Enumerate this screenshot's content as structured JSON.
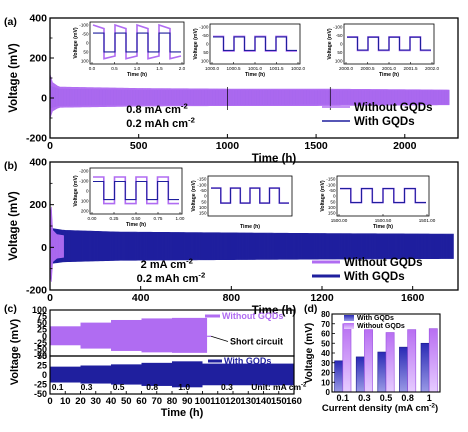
{
  "colors": {
    "without": "#b06cf2",
    "with": "#1f1f9e",
    "axis": "#000000",
    "bar_with_top": "#2a2ab5",
    "bar_with_bottom": "#9a9ae6",
    "bar_without_top": "#b86ef2",
    "bar_without_bottom": "#e6ccff"
  },
  "chart_data": [
    {
      "id": "a",
      "type": "line",
      "panel_label": "(a)",
      "xlabel": "Time (h)",
      "ylabel": "Voltage (mV)",
      "xlim": [
        0,
        2300
      ],
      "ylim": [
        -200,
        400
      ],
      "xticks": [
        0,
        500,
        1000,
        1500,
        2000
      ],
      "xtick_labels": [
        "0",
        "500",
        "1000",
        "1500",
        "2000"
      ],
      "yticks": [
        -200,
        0,
        200,
        400
      ],
      "ytick_labels": [
        "-200",
        "0",
        "200",
        "400"
      ],
      "annotation": [
        "0.8 mA cm",
        "-2",
        "0.2 mAh cm",
        "-2"
      ],
      "series": [
        {
          "name": "Without GQDs",
          "amplitude": [
            [
              0,
              120
            ],
            [
              10,
              80
            ],
            [
              50,
              55
            ],
            [
              500,
              48
            ],
            [
              1000,
              45
            ],
            [
              1500,
              45
            ],
            [
              2000,
              42
            ],
            [
              2250,
              40
            ]
          ],
          "end": 2250
        },
        {
          "name": "With GQDs",
          "amplitude": [
            [
              0,
              60
            ],
            [
              50,
              45
            ],
            [
              500,
              40
            ],
            [
              1000,
              40
            ],
            [
              1500,
              38
            ],
            [
              2000,
              38
            ],
            [
              2250,
              38
            ]
          ],
          "end": 2250
        }
      ],
      "legend": [
        "Without GQDs",
        "With GQDs"
      ],
      "insets": [
        {
          "xlim": [
            0.0,
            2.0
          ],
          "xticks": [
            "0.0",
            "0.5",
            "1.0",
            "1.5",
            "2.0"
          ],
          "ylim": [
            -100,
            100
          ],
          "yticks": [
            "-100",
            "-50",
            "0",
            "50",
            "100"
          ],
          "xlabel": "Time (h)",
          "ylabel": "Voltage (mV)",
          "without_amp": 80,
          "with_amp": 55
        },
        {
          "xlim": [
            1000.0,
            1002.0
          ],
          "xticks": [
            "1000.0",
            "1000.5",
            "1001.0",
            "1001.5",
            "1002.0"
          ],
          "ylim": [
            -100,
            100
          ],
          "yticks": [
            "-100",
            "-50",
            "0",
            "50",
            "100"
          ],
          "xlabel": "Time (h)",
          "ylabel": "Voltage (mV)",
          "without_amp": 45,
          "with_amp": 42
        },
        {
          "xlim": [
            2000.0,
            2002.0
          ],
          "xticks": [
            "2000.0",
            "2000.5",
            "2001.0",
            "2001.5",
            "2002.0"
          ],
          "ylim": [
            -100,
            100
          ],
          "yticks": [
            "-100",
            "-50",
            "0",
            "50",
            "100"
          ],
          "xlabel": "Time (h)",
          "ylabel": "Voltage (mV)",
          "without_amp": 42,
          "with_amp": 40
        }
      ]
    },
    {
      "id": "b",
      "type": "line",
      "panel_label": "(b)",
      "xlabel": "Time (h)",
      "ylabel": "Voltage (mV)",
      "xlim": [
        0,
        1800
      ],
      "ylim": [
        -200,
        400
      ],
      "xticks": [
        0,
        400,
        800,
        1200,
        1600
      ],
      "xtick_labels": [
        "0",
        "400",
        "800",
        "1200",
        "1600"
      ],
      "yticks": [
        -200,
        0,
        200,
        400
      ],
      "ytick_labels": [
        "-200",
        "0",
        "200",
        "400"
      ],
      "annotation": [
        "2 mA cm",
        "-2",
        "0.2 mAh cm",
        "-2"
      ],
      "series": [
        {
          "name": "Without GQDs",
          "amplitude": [
            [
              0,
              150
            ],
            [
              6,
              190
            ],
            [
              12,
              80
            ],
            [
              30,
              60
            ],
            [
              60,
              55
            ]
          ],
          "end": 60
        },
        {
          "name": "With GQDs",
          "amplitude": [
            [
              0,
              90
            ],
            [
              60,
              80
            ],
            [
              300,
              72
            ],
            [
              800,
              68
            ],
            [
              1200,
              65
            ],
            [
              1780,
              62
            ]
          ],
          "end": 1780
        }
      ],
      "legend": [
        "Without GQDs",
        "With GQDs"
      ],
      "insets": [
        {
          "xlim": [
            0.0,
            1.0
          ],
          "xticks": [
            "0.00",
            "0.25",
            "0.50",
            "0.75",
            "1.00"
          ],
          "ylim": [
            -200,
            200
          ],
          "yticks": [
            "-200",
            "-100",
            "0",
            "100",
            "200"
          ],
          "xlabel": "Time (h)",
          "ylabel": "Voltage (mV)",
          "without_amp": 140,
          "with_amp": 95
        },
        {
          "xlim": [
            0,
            1
          ],
          "xticks": [],
          "ylim": [
            -150,
            150
          ],
          "yticks": [
            "-150",
            "-100",
            "-50",
            "0",
            "50",
            "100",
            "150"
          ],
          "xlabel": "Time (h)",
          "ylabel": "Voltage (mV)",
          "without_amp": 70,
          "with_amp": 70
        },
        {
          "xlim": [
            1500.0,
            1501.0
          ],
          "xticks": [
            "1500.00",
            "1500.50",
            "1501.00"
          ],
          "ylim": [
            -150,
            150
          ],
          "yticks": [
            "-150",
            "-100",
            "-50",
            "0",
            "50",
            "100",
            "150"
          ],
          "xlabel": "Time (h)",
          "ylabel": "Voltage (mV)",
          "without_amp": 65,
          "with_amp": 65
        }
      ]
    },
    {
      "id": "c",
      "type": "line",
      "panel_label": "(c)",
      "xlabel": "Time (h)",
      "ylabel": "Voltage (mV)",
      "xlim": [
        0,
        160
      ],
      "xticks": [
        0,
        10,
        20,
        30,
        40,
        50,
        60,
        70,
        80,
        90,
        100,
        110,
        120,
        130,
        140,
        150,
        160
      ],
      "xtick_labels": [
        "0",
        "10",
        "20",
        "30",
        "40",
        "50",
        "60",
        "70",
        "80",
        "90",
        "100",
        "110",
        "120",
        "130",
        "140",
        "150",
        "160"
      ],
      "top": {
        "ylim": [
          -75,
          100
        ],
        "yticks": [
          100,
          75,
          50,
          25,
          0,
          -25,
          -50,
          -75
        ],
        "ytick_labels": [
          "100",
          "75",
          "50",
          "25",
          "0",
          "-25",
          "-50",
          "-75"
        ],
        "legend": "Without GQDs",
        "short_label": "Short circuit",
        "short_at": 103
      },
      "bottom": {
        "ylim": [
          -50,
          50
        ],
        "yticks": [
          50,
          25,
          0,
          -25,
          -50
        ],
        "ytick_labels": [
          "50",
          "25",
          "0",
          "-25",
          "-50"
        ],
        "legend": "With GQDs"
      },
      "rate_labels": [
        "0.1",
        "0.3",
        "0.5",
        "0.8",
        "1.0",
        "0.3"
      ],
      "rate_positions": [
        5,
        24,
        45,
        67,
        88,
        116
      ],
      "unit_label": "Unit: mA cm",
      "unit_sup": "-2",
      "series": [
        {
          "name": "Without GQDs",
          "segments": [
            [
              0,
              20,
              38
            ],
            [
              20,
              40,
              52
            ],
            [
              40,
              60,
              62
            ],
            [
              60,
              80,
              68
            ],
            [
              80,
              103,
              70
            ]
          ]
        },
        {
          "name": "With GQDs",
          "segments": [
            [
              0,
              20,
              22
            ],
            [
              20,
              40,
              25
            ],
            [
              40,
              60,
              28
            ],
            [
              60,
              80,
              32
            ],
            [
              80,
              100,
              36
            ],
            [
              100,
              160,
              30
            ]
          ]
        }
      ]
    },
    {
      "id": "d",
      "type": "bar",
      "panel_label": "(d)",
      "xlabel": "Current density (mA cm",
      "xlabel_sup": "-2",
      "xlabel_end": ")",
      "ylabel": "Voltage (mV)",
      "categories": [
        "0.1",
        "0.3",
        "0.5",
        "0.8",
        "1"
      ],
      "ylim": [
        0,
        80
      ],
      "yticks": [
        0,
        10,
        20,
        30,
        40,
        50,
        60,
        70,
        80
      ],
      "ytick_labels": [
        "0",
        "10",
        "20",
        "30",
        "40",
        "50",
        "60",
        "70",
        "80"
      ],
      "series": [
        {
          "name": "With GQDs",
          "values": [
            32,
            36,
            41,
            46,
            50
          ]
        },
        {
          "name": "Without GQDs",
          "values": [
            70,
            64,
            61,
            64,
            65
          ]
        }
      ],
      "legend": [
        "With GQDs",
        "Without GQDs"
      ]
    }
  ]
}
